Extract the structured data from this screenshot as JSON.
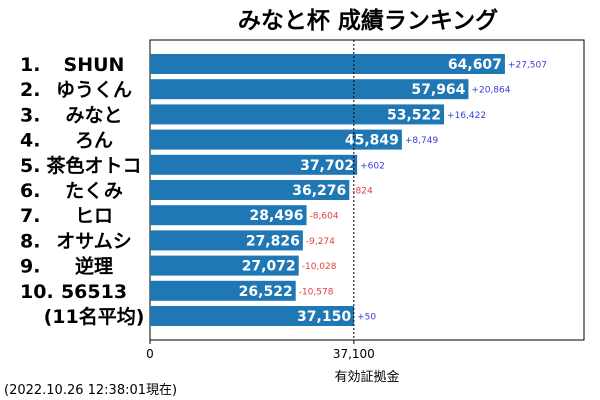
{
  "chart_data": {
    "type": "bar",
    "orientation": "horizontal",
    "title": "みなと杯 成績ランキング",
    "xlabel": "有効証拠金",
    "timestamp": "(2022.10.26 12:38:01現在)",
    "categories": [
      "SHUN",
      "ゆうくん",
      "みなと",
      "ろん",
      "茶色オトコ",
      "たくみ",
      "ヒロ",
      "オサムシ",
      "逆理",
      "56513",
      "(11名平均)"
    ],
    "ranks": [
      "1.",
      "2.",
      "3.",
      "4.",
      "5.",
      "6.",
      "7.",
      "8.",
      "9.",
      "10.",
      ""
    ],
    "values": [
      64607,
      57964,
      53522,
      45849,
      37702,
      36276,
      28496,
      27826,
      27072,
      26522,
      37150
    ],
    "value_labels": [
      "64,607",
      "57,964",
      "53,522",
      "45,849",
      "37,702",
      "36,276",
      "28,496",
      "27,826",
      "27,072",
      "26,522",
      "37,150"
    ],
    "deltas": [
      "+27,507",
      "+20,864",
      "+16,422",
      "+8,749",
      "+602",
      "-824",
      "-8,604",
      "-9,274",
      "-10,028",
      "-10,578",
      "+50"
    ],
    "xlim": [
      0,
      79000
    ],
    "xticks": [
      0,
      37100
    ],
    "xtick_labels": [
      "0",
      "37,100"
    ],
    "reference_line": 37100,
    "colors": {
      "bar": "#1f77b4",
      "positive": "#3a3adf",
      "negative": "#e04040",
      "reference": "#000000"
    }
  }
}
